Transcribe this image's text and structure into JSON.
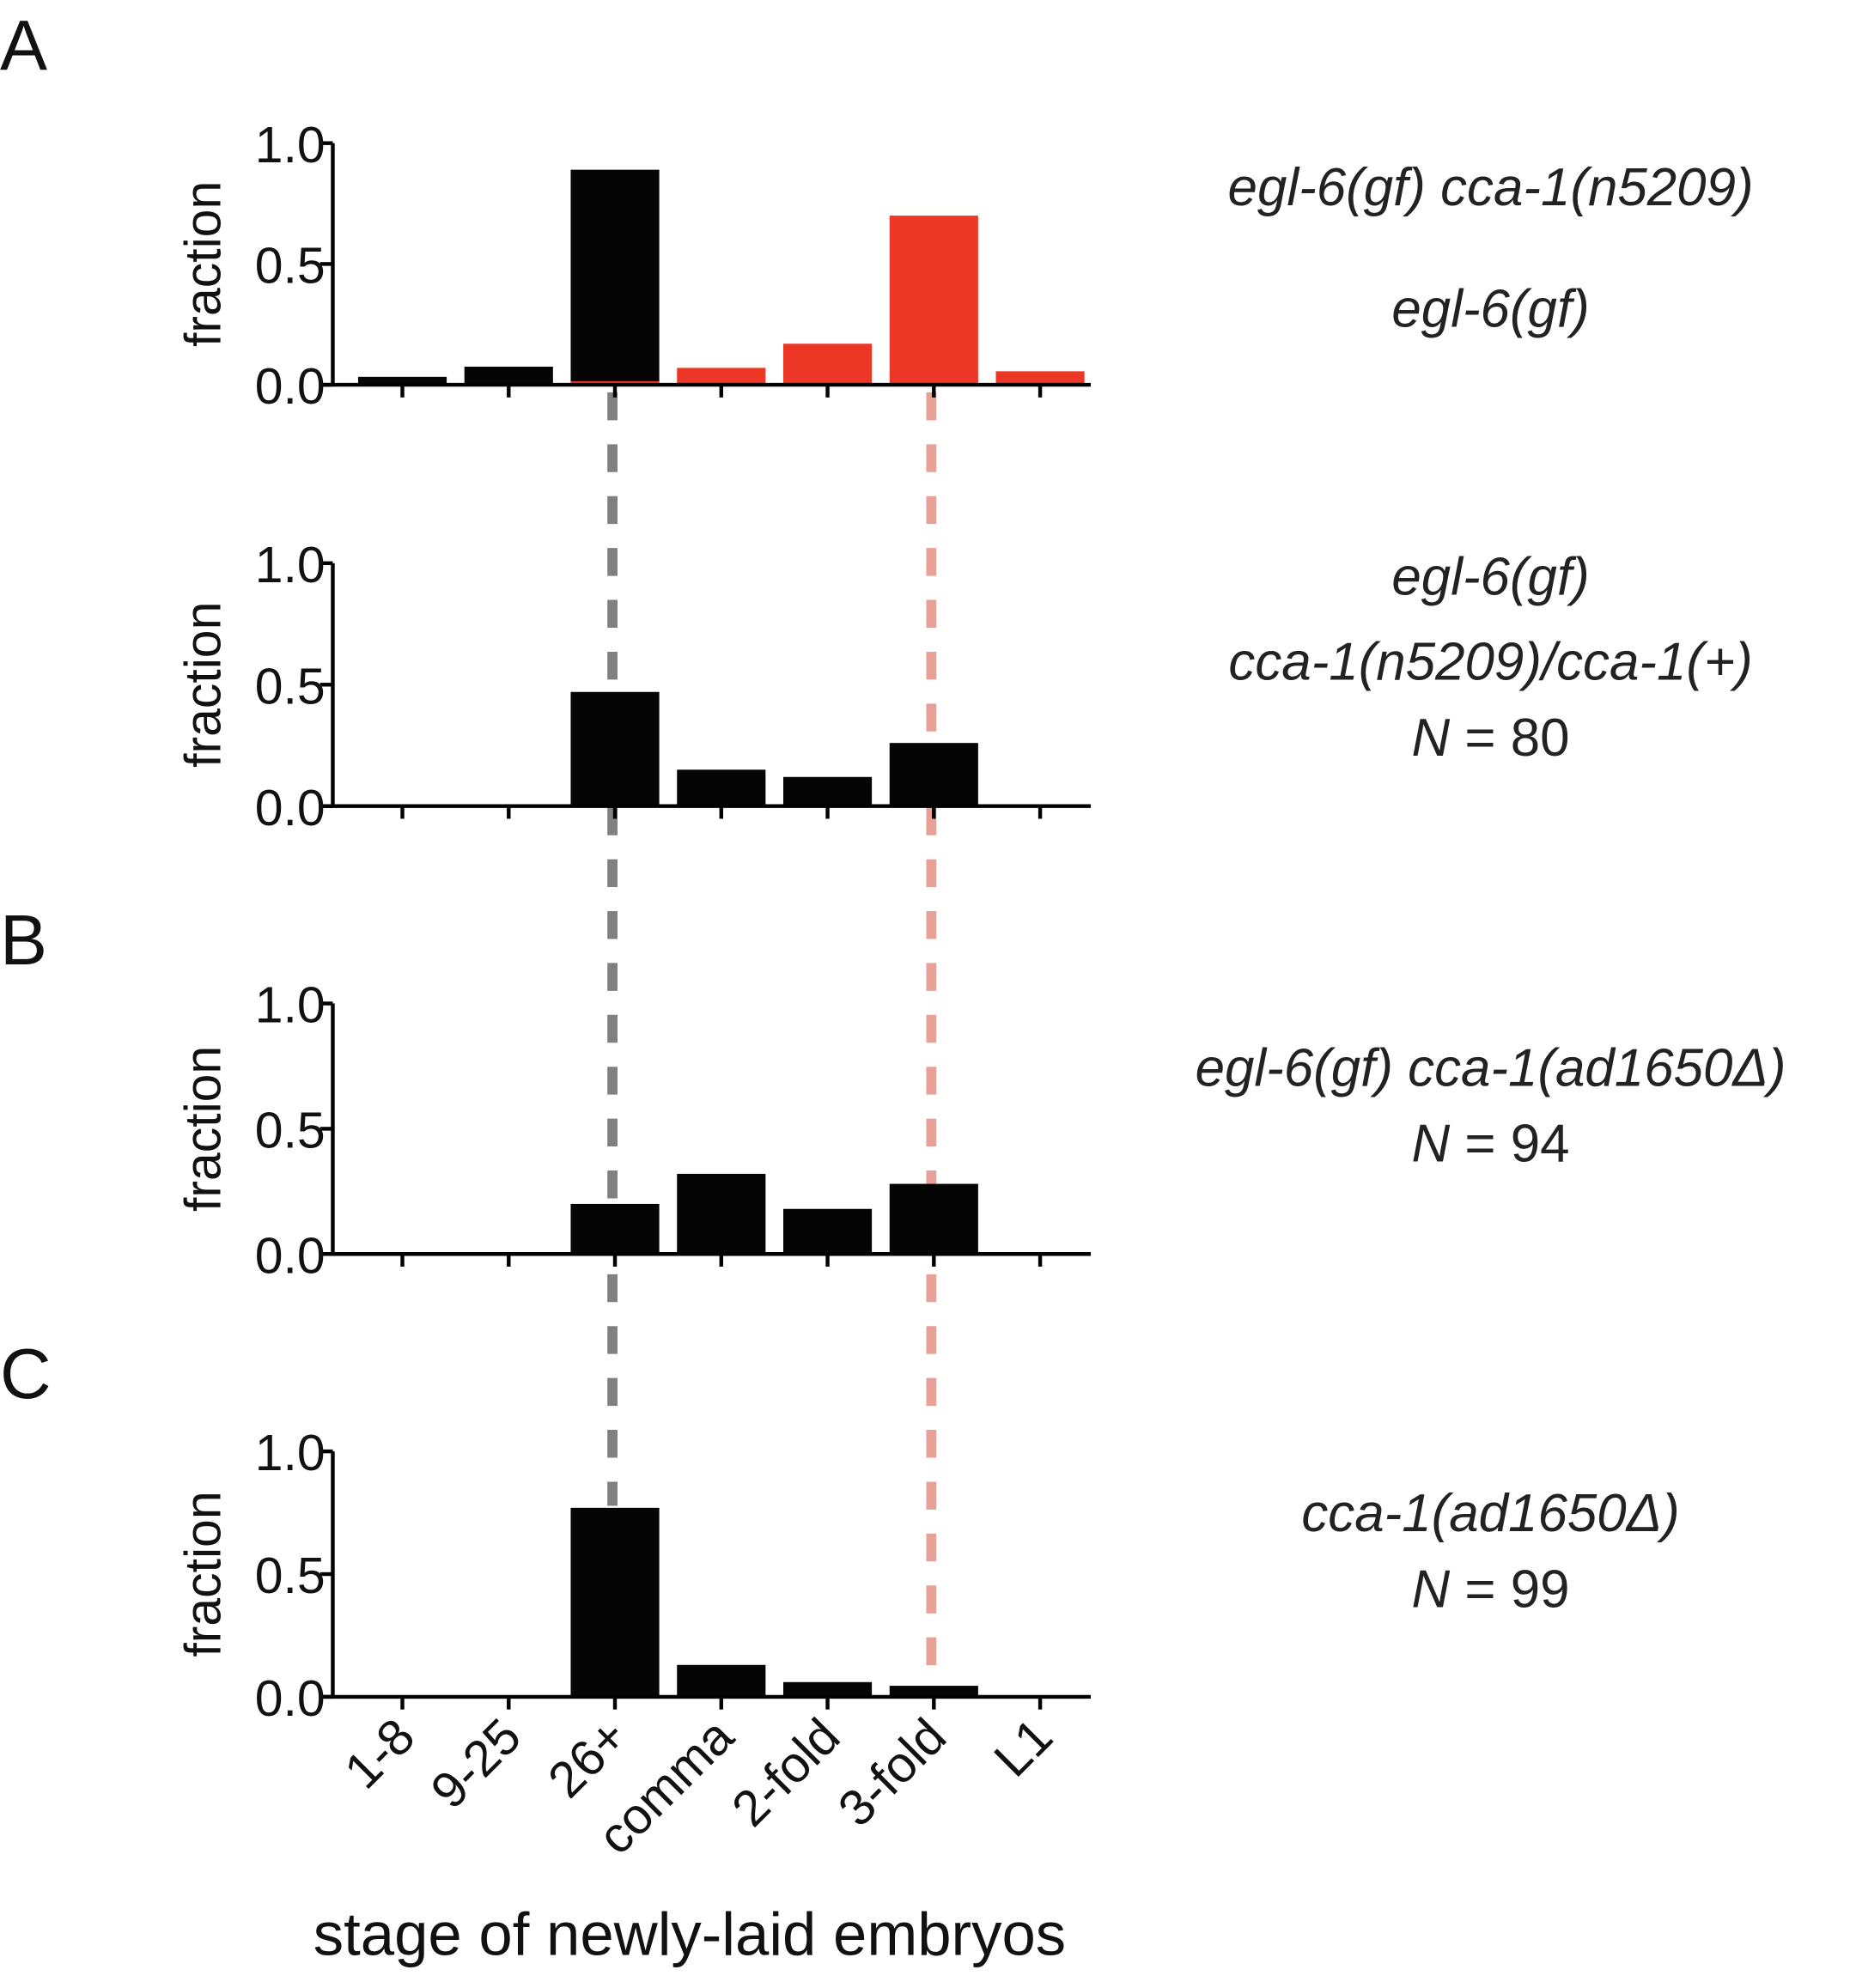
{
  "chart_data": {
    "type": "bar",
    "xlabel": "stage of newly-laid embryos",
    "categories": [
      "1-8",
      "9-25",
      "26+",
      "comma",
      "2-fold",
      "3-fold",
      "L1"
    ],
    "ylabel": "fraction",
    "ylim": [
      0,
      1.0
    ],
    "yticks": [
      "0.0",
      "0.5",
      "1.0"
    ],
    "colors": {
      "black": "#050505",
      "red": "#ec3726",
      "gray_dash": "#808080",
      "pink_dash": "#e9a097"
    },
    "reference_lines": [
      {
        "category": "26+",
        "color": "#808080",
        "style": "dashed"
      },
      {
        "category": "3-fold",
        "color": "#e9a097",
        "style": "dashed"
      }
    ],
    "panels": [
      {
        "panel_label": "A",
        "series": [
          {
            "name": "egl-6(gf) cca-1(n5209)",
            "color": "#050505",
            "values": [
              0.033,
              0.075,
              0.89,
              0,
              0,
              0,
              0
            ]
          },
          {
            "name": "egl-6(gf)",
            "color": "#ec3726",
            "values": [
              0,
              0,
              0.015,
              0.07,
              0.17,
              0.7,
              0.056
            ]
          }
        ],
        "labels": [
          {
            "text": "egl-6(gf) cca-1(n5209)",
            "color": "#222222",
            "italic": true
          },
          {
            "text": "egl-6(gf)",
            "color": "#ec3726",
            "italic": true
          }
        ]
      },
      {
        "panel_label": "",
        "series": [
          {
            "name": "egl-6(gf) cca-1(n5209)/cca-1(+)",
            "color": "#050505",
            "values": [
              0,
              0,
              0.47,
              0.15,
              0.12,
              0.26,
              0
            ]
          }
        ],
        "labels": [
          {
            "text": "egl-6(gf)",
            "color": "#222222",
            "italic": true
          },
          {
            "text": "cca-1(n5209)/cca-1(+)",
            "color": "#222222",
            "italic": true
          },
          {
            "text": "N = 80",
            "color": "#222222",
            "italic": false
          }
        ]
      },
      {
        "panel_label": "B",
        "series": [
          {
            "name": "egl-6(gf) cca-1(ad1650Δ)",
            "color": "#050505",
            "values": [
              0,
              0,
              0.2,
              0.32,
              0.18,
              0.28,
              0
            ]
          }
        ],
        "labels": [
          {
            "text": "egl-6(gf) cca-1(ad1650Δ)",
            "color": "#222222",
            "italic": true
          },
          {
            "text": "N = 94",
            "color": "#222222",
            "italic": false
          }
        ]
      },
      {
        "panel_label": "C",
        "series": [
          {
            "name": "cca-1(ad1650Δ)",
            "color": "#050505",
            "values": [
              0,
              0,
              0.77,
              0.13,
              0.06,
              0.045,
              0
            ]
          }
        ],
        "labels": [
          {
            "text": "cca-1(ad1650Δ)",
            "color": "#222222",
            "italic": true
          },
          {
            "text": "N = 99",
            "color": "#222222",
            "italic": false
          }
        ]
      }
    ]
  }
}
